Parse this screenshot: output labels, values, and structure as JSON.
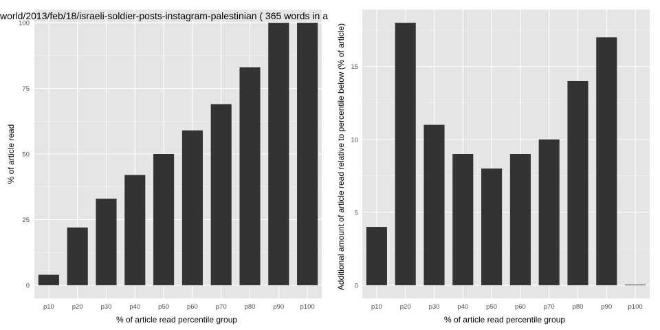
{
  "chart_data": [
    {
      "type": "bar",
      "title": "world/2013/feb/18/israeli-soldier-posts-instagram-palestinian ( 365 words in a",
      "xlabel": "% of article read percentile group",
      "ylabel": "% of article read",
      "categories": [
        "p10",
        "p20",
        "p30",
        "p40",
        "p50",
        "p60",
        "p70",
        "p80",
        "p90",
        "p100"
      ],
      "values": [
        4,
        22,
        33,
        42,
        50,
        59,
        69,
        83,
        100,
        100
      ],
      "ylim": [
        -5,
        105
      ],
      "yticks": [
        0,
        25,
        50,
        75,
        100
      ],
      "grid": true
    },
    {
      "type": "bar",
      "title": "",
      "xlabel": "% of article read percentile group",
      "ylabel": "Additional amount of article read relative to percentile below (% of article)",
      "categories": [
        "p10",
        "p20",
        "p30",
        "p40",
        "p50",
        "p60",
        "p70",
        "p80",
        "p90",
        "p100"
      ],
      "values": [
        4,
        18,
        11,
        9,
        8,
        9,
        10,
        14,
        17,
        0
      ],
      "ylim": [
        -0.9,
        18.9
      ],
      "yticks": [
        0,
        5,
        10,
        15
      ],
      "grid": true
    }
  ],
  "colors": {
    "panel_bg": "#e5e5e5",
    "grid_major": "#ffffff",
    "grid_minor": "#f2f2f2",
    "bar": "#333333"
  }
}
